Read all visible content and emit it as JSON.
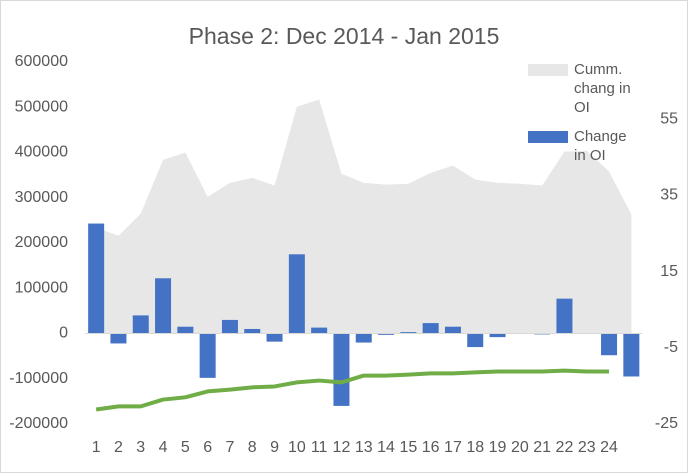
{
  "chart_data": {
    "type": "combo",
    "title": "Phase 2: Dec 2014 - Jan 2015",
    "categories": [
      "1",
      "2",
      "3",
      "4",
      "5",
      "6",
      "7",
      "8",
      "9",
      "10",
      "11",
      "12",
      "13",
      "14",
      "15",
      "16",
      "17",
      "18",
      "19",
      "20",
      "21",
      "22",
      "23",
      "24",
      null
    ],
    "series": [
      {
        "name": "Cumm. chang in OI",
        "kind": "area",
        "color": "#e7e7e7",
        "values": [
          234000,
          216000,
          265000,
          384000,
          400000,
          302000,
          333000,
          344000,
          327000,
          501000,
          517000,
          353000,
          333000,
          329000,
          331000,
          355000,
          371000,
          340000,
          333000,
          331000,
          327000,
          402000,
          404000,
          358000,
          263000
        ]
      },
      {
        "name": "Change in OI",
        "kind": "bar",
        "color": "#4472c4",
        "values": [
          243000,
          -22000,
          40000,
          122000,
          15000,
          -98000,
          30000,
          10000,
          -18000,
          175000,
          13000,
          -160000,
          -20000,
          -3000,
          3000,
          23000,
          15000,
          -30000,
          -8000,
          0,
          -2000,
          77000,
          0,
          -48000,
          -95000
        ]
      },
      {
        "kind": "line",
        "color": "#70ad47",
        "values": [
          -168000,
          -161000,
          -161000,
          -146000,
          -141000,
          -128000,
          -124000,
          -119000,
          -117000,
          -108000,
          -104000,
          -108000,
          -93000,
          -93000,
          -91000,
          -88000,
          -88000,
          -86000,
          -84000,
          -84000,
          -84000,
          -82000,
          -84000,
          -84000,
          null
        ]
      }
    ],
    "ylim": [
      -200000,
      600000
    ],
    "yticks": [
      -200000,
      -100000,
      0,
      100000,
      200000,
      300000,
      400000,
      500000,
      600000
    ],
    "y2lim": [
      -25,
      70
    ],
    "y2ticks": [
      -25,
      -5,
      15,
      35,
      55
    ]
  }
}
